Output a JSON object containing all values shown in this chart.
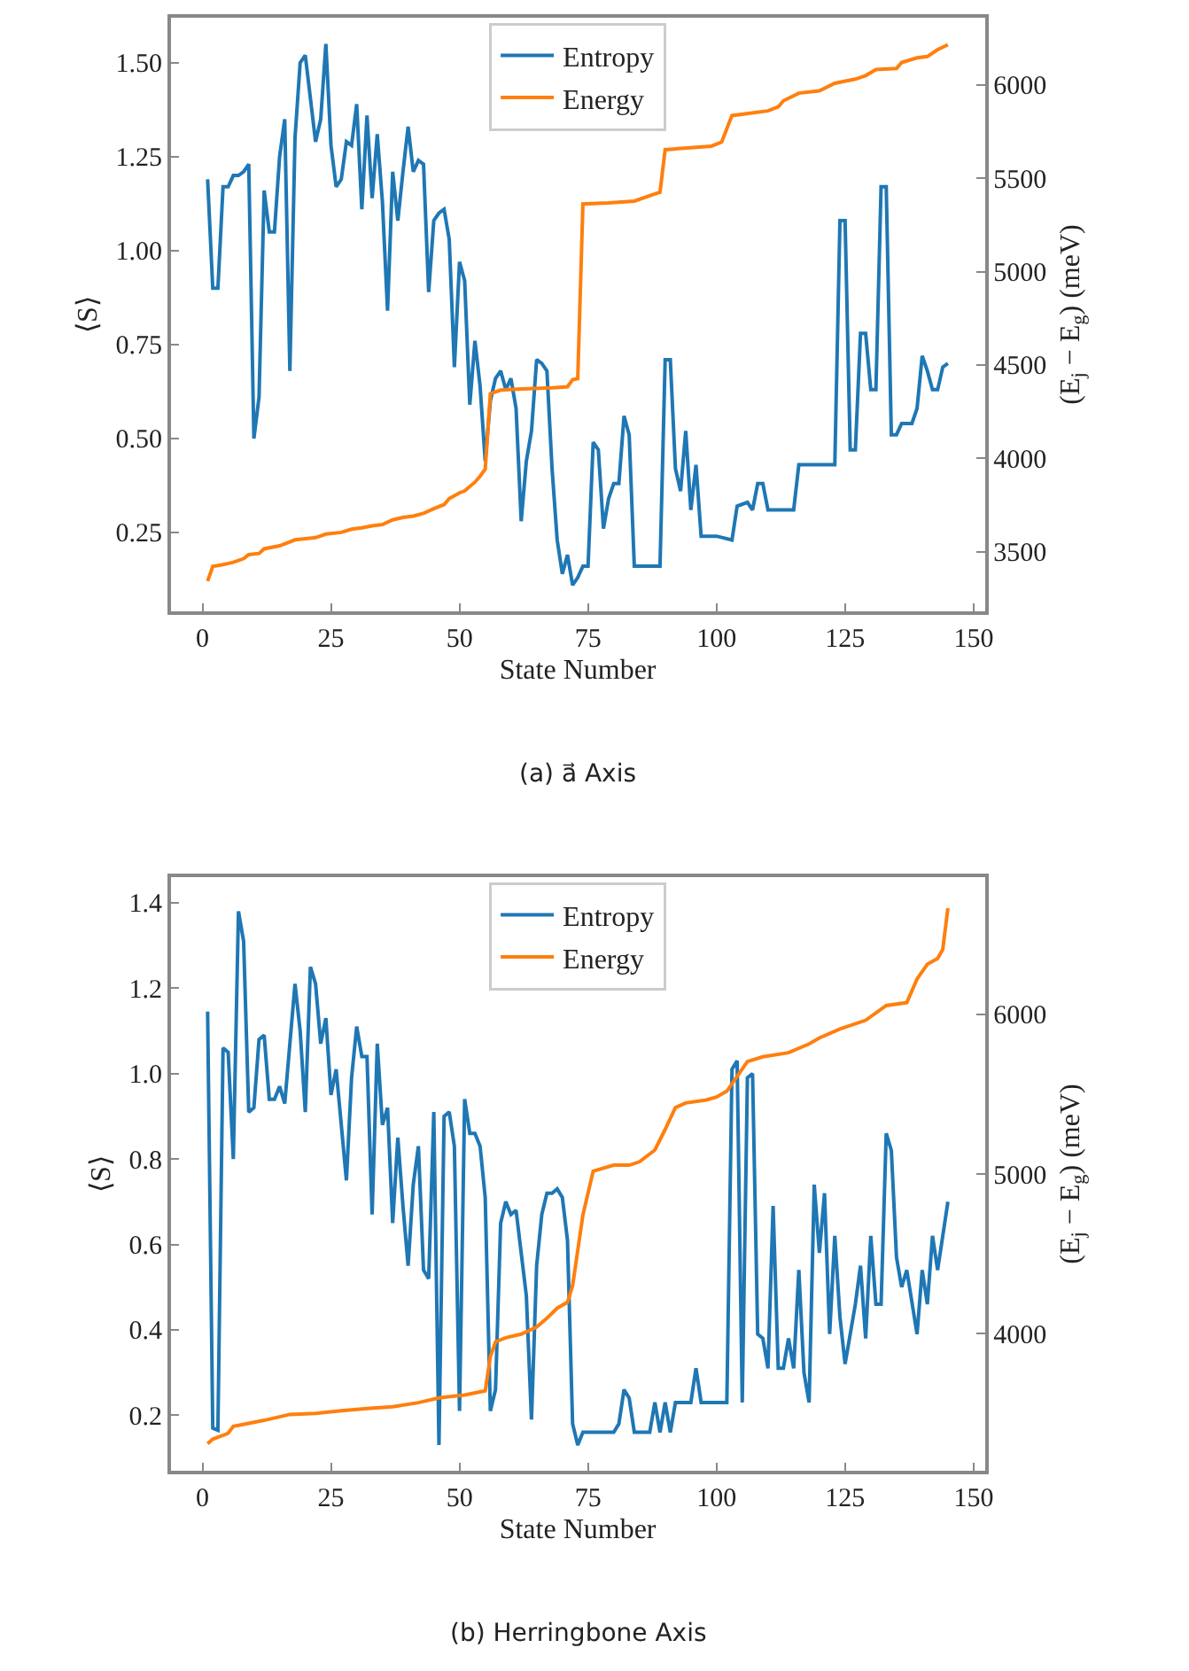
{
  "chart_data": [
    {
      "type": "line",
      "title": "(a) a⃗ Axis",
      "xlabel": "State Number",
      "ylabel": "⟨S⟩",
      "y2label": "(E$_{j}$ − E$_{g}$) (meV)",
      "xlim": [
        -6.2,
        152.2
      ],
      "xticks": [
        0,
        25,
        50,
        75,
        100,
        125,
        150
      ],
      "ylim": [
        0.04,
        1.62
      ],
      "yticks": [
        {
          "value": 0.25,
          "label": "0.25"
        },
        {
          "value": 0.5,
          "label": "0.50"
        },
        {
          "value": 0.75,
          "label": "0.75"
        },
        {
          "value": 1.0,
          "label": "1.00"
        },
        {
          "value": 1.25,
          "label": "1.25"
        },
        {
          "value": 1.5,
          "label": "1.50"
        }
      ],
      "y2lim": [
        3180,
        6360
      ],
      "y2ticks": [
        3500,
        4000,
        4500,
        5000,
        5500,
        6000
      ],
      "legend": "top",
      "marker": "none",
      "line_style": "solid",
      "series": [
        {
          "name": "Entropy",
          "color": "#1f77b4",
          "x": [
            1,
            2,
            3,
            4,
            5,
            6,
            7,
            8,
            9,
            10,
            11,
            12,
            13,
            14,
            15,
            16,
            17,
            18,
            19,
            20,
            22,
            23,
            24,
            25,
            26,
            27,
            28,
            29,
            30,
            31,
            32,
            33,
            34,
            35,
            36,
            37,
            38,
            39,
            40,
            41,
            42,
            43,
            44,
            45,
            46,
            47,
            48,
            49,
            50,
            51,
            52,
            53,
            54,
            55,
            56,
            57,
            58,
            59,
            60,
            61,
            62,
            63,
            64,
            65,
            66,
            67,
            68,
            69,
            70,
            71,
            72,
            73,
            74,
            75,
            76,
            77,
            78,
            79,
            80,
            81,
            82,
            83,
            84,
            89,
            90,
            91,
            92,
            93,
            94,
            95,
            96,
            97,
            99,
            100,
            103,
            104,
            106,
            107,
            108,
            109,
            110,
            115,
            116,
            123,
            124,
            125,
            126,
            127,
            128,
            129,
            130,
            131,
            132,
            133,
            134,
            135,
            136,
            138,
            139,
            140,
            141,
            142,
            143,
            144,
            145
          ],
          "values": [
            1.19,
            0.9,
            0.9,
            1.17,
            1.17,
            1.2,
            1.2,
            1.21,
            1.23,
            0.5,
            0.61,
            1.16,
            1.05,
            1.05,
            1.25,
            1.35,
            0.68,
            1.3,
            1.5,
            1.52,
            1.29,
            1.35,
            1.55,
            1.28,
            1.17,
            1.19,
            1.29,
            1.28,
            1.39,
            1.11,
            1.36,
            1.14,
            1.31,
            1.13,
            0.84,
            1.21,
            1.08,
            1.21,
            1.33,
            1.21,
            1.24,
            1.23,
            0.89,
            1.08,
            1.1,
            1.11,
            1.03,
            0.69,
            0.97,
            0.92,
            0.59,
            0.76,
            0.64,
            0.44,
            0.6,
            0.66,
            0.68,
            0.63,
            0.66,
            0.58,
            0.28,
            0.44,
            0.52,
            0.71,
            0.7,
            0.68,
            0.42,
            0.23,
            0.14,
            0.19,
            0.11,
            0.13,
            0.16,
            0.16,
            0.49,
            0.47,
            0.26,
            0.34,
            0.38,
            0.38,
            0.56,
            0.51,
            0.16,
            0.16,
            0.71,
            0.71,
            0.42,
            0.36,
            0.52,
            0.31,
            0.43,
            0.24,
            0.24,
            0.24,
            0.23,
            0.32,
            0.33,
            0.31,
            0.38,
            0.38,
            0.31,
            0.31,
            0.43,
            0.43,
            1.08,
            1.08,
            0.47,
            0.47,
            0.78,
            0.78,
            0.63,
            0.63,
            1.17,
            1.17,
            0.51,
            0.51,
            0.54,
            0.54,
            0.58,
            0.72,
            0.68,
            0.63,
            0.63,
            0.69,
            0.7
          ]
        },
        {
          "name": "Energy",
          "color": "#ff7f0e",
          "axis": "y2",
          "x": [
            1,
            2,
            4,
            6,
            8,
            9,
            11,
            12,
            15,
            18,
            20,
            22,
            24,
            27,
            29,
            31,
            33,
            35,
            37,
            39,
            41,
            43,
            45,
            47,
            48,
            50,
            51,
            53,
            54,
            55,
            56,
            58,
            62,
            68,
            71,
            72,
            73,
            74,
            79,
            84,
            88,
            89,
            90,
            99,
            101,
            103,
            110,
            112,
            113,
            116,
            120,
            123,
            127,
            129,
            131,
            135,
            136,
            139,
            141,
            143,
            145
          ],
          "values": [
            3342,
            3421,
            3430,
            3443,
            3462,
            3484,
            3490,
            3515,
            3531,
            3563,
            3569,
            3575,
            3594,
            3603,
            3620,
            3627,
            3638,
            3645,
            3670,
            3683,
            3690,
            3705,
            3730,
            3752,
            3784,
            3815,
            3825,
            3872,
            3904,
            3942,
            4346,
            4365,
            4371,
            4377,
            4383,
            4421,
            4427,
            5362,
            5368,
            5378,
            5416,
            5425,
            5653,
            5672,
            5694,
            5836,
            5861,
            5883,
            5915,
            5956,
            5968,
            6009,
            6031,
            6050,
            6082,
            6088,
            6120,
            6145,
            6152,
            6189,
            6215
          ]
        }
      ]
    },
    {
      "type": "line",
      "title": "(b) Herringbone Axis",
      "xlabel": "State Number",
      "ylabel": "⟨S⟩",
      "y2label": "(E$_{j}$ − E$_{g}$) (meV)",
      "xlim": [
        -6.2,
        152.2
      ],
      "xticks": [
        0,
        25,
        50,
        75,
        100,
        125,
        150
      ],
      "ylim": [
        0.07,
        1.46
      ],
      "yticks": [
        {
          "value": 0.2,
          "label": "0.2"
        },
        {
          "value": 0.4,
          "label": "0.4"
        },
        {
          "value": 0.6,
          "label": "0.6"
        },
        {
          "value": 0.8,
          "label": "0.8"
        },
        {
          "value": 1.0,
          "label": "1.0"
        },
        {
          "value": 1.2,
          "label": "1.2"
        },
        {
          "value": 1.4,
          "label": "1.4"
        }
      ],
      "y2lim": [
        3140,
        6860
      ],
      "y2ticks": [
        4000,
        5000,
        6000
      ],
      "legend": "top",
      "marker": "none",
      "line_style": "solid",
      "series": [
        {
          "name": "Entropy",
          "color": "#1f77b4",
          "x": [
            1,
            2,
            3,
            4,
            5,
            6,
            7,
            8,
            9,
            10,
            11,
            12,
            13,
            14,
            15,
            16,
            17,
            18,
            19,
            20,
            21,
            22,
            23,
            24,
            25,
            26,
            27,
            28,
            29,
            30,
            31,
            32,
            33,
            34,
            35,
            36,
            37,
            38,
            39,
            40,
            41,
            42,
            43,
            44,
            45,
            46,
            47,
            48,
            49,
            50,
            51,
            52,
            53,
            54,
            55,
            56,
            57,
            58,
            59,
            60,
            61,
            62,
            63,
            64,
            65,
            66,
            67,
            68,
            69,
            70,
            71,
            72,
            73,
            74,
            80,
            81,
            82,
            83,
            84,
            87,
            88,
            89,
            90,
            91,
            92,
            95,
            96,
            97,
            102,
            103,
            104,
            105,
            106,
            107,
            108,
            109,
            110,
            111,
            112,
            113,
            114,
            115,
            116,
            117,
            118,
            119,
            120,
            121,
            122,
            123,
            124,
            125,
            127,
            128,
            129,
            130,
            131,
            132,
            133,
            134,
            135,
            136,
            137,
            139,
            140,
            141,
            142,
            143,
            145
          ],
          "values": [
            1.145,
            0.17,
            0.165,
            1.06,
            1.05,
            0.8,
            1.38,
            1.31,
            0.91,
            0.92,
            1.08,
            1.09,
            0.94,
            0.94,
            0.97,
            0.93,
            1.07,
            1.21,
            1.1,
            0.91,
            1.25,
            1.21,
            1.07,
            1.13,
            0.95,
            1.01,
            0.88,
            0.75,
            0.99,
            1.11,
            1.04,
            1.04,
            0.67,
            1.07,
            0.88,
            0.92,
            0.65,
            0.85,
            0.69,
            0.55,
            0.74,
            0.83,
            0.54,
            0.52,
            0.91,
            0.13,
            0.9,
            0.91,
            0.83,
            0.21,
            0.94,
            0.86,
            0.86,
            0.83,
            0.71,
            0.21,
            0.26,
            0.65,
            0.7,
            0.67,
            0.68,
            0.58,
            0.48,
            0.19,
            0.55,
            0.67,
            0.72,
            0.72,
            0.73,
            0.71,
            0.61,
            0.18,
            0.13,
            0.16,
            0.16,
            0.18,
            0.26,
            0.24,
            0.16,
            0.16,
            0.23,
            0.16,
            0.23,
            0.16,
            0.23,
            0.23,
            0.31,
            0.23,
            0.23,
            1.01,
            1.03,
            0.23,
            0.99,
            1.0,
            0.39,
            0.38,
            0.31,
            0.69,
            0.31,
            0.31,
            0.38,
            0.31,
            0.54,
            0.3,
            0.23,
            0.74,
            0.58,
            0.72,
            0.39,
            0.62,
            0.43,
            0.32,
            0.46,
            0.55,
            0.38,
            0.62,
            0.46,
            0.46,
            0.86,
            0.82,
            0.57,
            0.5,
            0.54,
            0.39,
            0.54,
            0.46,
            0.62,
            0.54,
            0.7
          ]
        },
        {
          "name": "Energy",
          "color": "#ff7f0e",
          "axis": "y2",
          "x": [
            1,
            2,
            3,
            5,
            6,
            7,
            12,
            17,
            22,
            27,
            32,
            37,
            42,
            46,
            51,
            55,
            56,
            57,
            59,
            62,
            65,
            67,
            69,
            71,
            72,
            74,
            76,
            80,
            83,
            85,
            88,
            90,
            92,
            94,
            98,
            100,
            102,
            104,
            106,
            109,
            114,
            118,
            120,
            124,
            129,
            133,
            137,
            139,
            141,
            143,
            144,
            145
          ],
          "values": [
            3309,
            3338,
            3350,
            3375,
            3419,
            3425,
            3456,
            3493,
            3500,
            3516,
            3530,
            3541,
            3567,
            3597,
            3615,
            3641,
            3856,
            3948,
            3974,
            3996,
            4041,
            4096,
            4159,
            4196,
            4300,
            4743,
            5018,
            5055,
            5055,
            5076,
            5150,
            5279,
            5416,
            5445,
            5464,
            5482,
            5519,
            5612,
            5704,
            5734,
            5760,
            5815,
            5852,
            5908,
            5963,
            6055,
            6074,
            6222,
            6314,
            6351,
            6407,
            6665
          ]
        }
      ]
    }
  ]
}
